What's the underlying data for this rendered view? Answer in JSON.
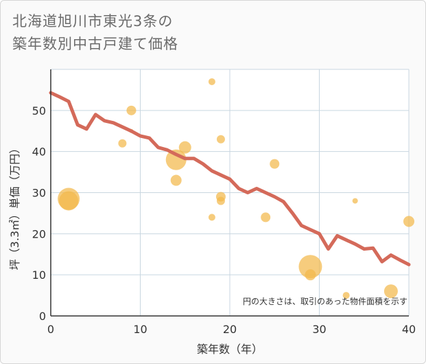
{
  "chart_data": {
    "type": "scatter",
    "title_line1": "北海道旭川市東光3条の",
    "title_line2": "築年数別中古戸建て価格",
    "xlabel": "築年数（年）",
    "ylabel": "坪（3.3㎡）単価（万円）",
    "xlim": [
      0,
      40
    ],
    "ylim": [
      0,
      60
    ],
    "x_ticks": [
      0,
      10,
      20,
      30,
      40
    ],
    "y_ticks": [
      0,
      10,
      20,
      30,
      40,
      50
    ],
    "grid": true,
    "note": "円の大きさは、取引のあった物件面積を示す",
    "colors": {
      "bubble": "#f2b84b",
      "line": "#d46a5a",
      "grid": "#c8d6e0",
      "axis": "#333333"
    },
    "bubbles": [
      {
        "x": 2,
        "y": 28.5,
        "size": 16
      },
      {
        "x": 2,
        "y": 28,
        "size": 14
      },
      {
        "x": 8,
        "y": 42,
        "size": 6
      },
      {
        "x": 9,
        "y": 50,
        "size": 7
      },
      {
        "x": 9,
        "y": 45,
        "size": 3
      },
      {
        "x": 14,
        "y": 38,
        "size": 15
      },
      {
        "x": 14,
        "y": 33,
        "size": 8
      },
      {
        "x": 15,
        "y": 41,
        "size": 9
      },
      {
        "x": 18,
        "y": 57,
        "size": 5
      },
      {
        "x": 18,
        "y": 24,
        "size": 5
      },
      {
        "x": 19,
        "y": 43,
        "size": 6
      },
      {
        "x": 19,
        "y": 29,
        "size": 7
      },
      {
        "x": 19,
        "y": 28,
        "size": 6
      },
      {
        "x": 24,
        "y": 24,
        "size": 7
      },
      {
        "x": 25,
        "y": 37,
        "size": 7
      },
      {
        "x": 29,
        "y": 12,
        "size": 17
      },
      {
        "x": 29,
        "y": 10,
        "size": 8
      },
      {
        "x": 33,
        "y": 5,
        "size": 5
      },
      {
        "x": 34,
        "y": 28,
        "size": 4
      },
      {
        "x": 38,
        "y": 6,
        "size": 10
      },
      {
        "x": 40,
        "y": 23,
        "size": 8
      }
    ],
    "trend": [
      {
        "x": 0,
        "y": 54.3
      },
      {
        "x": 1,
        "y": 53.3
      },
      {
        "x": 2,
        "y": 52.2
      },
      {
        "x": 3,
        "y": 46.5
      },
      {
        "x": 4,
        "y": 45.5
      },
      {
        "x": 5,
        "y": 49
      },
      {
        "x": 6,
        "y": 47.5
      },
      {
        "x": 7,
        "y": 47
      },
      {
        "x": 8,
        "y": 46
      },
      {
        "x": 9,
        "y": 45
      },
      {
        "x": 10,
        "y": 43.8
      },
      {
        "x": 11,
        "y": 43.3
      },
      {
        "x": 12,
        "y": 41
      },
      {
        "x": 13,
        "y": 40.4
      },
      {
        "x": 14,
        "y": 39.3
      },
      {
        "x": 15,
        "y": 38.3
      },
      {
        "x": 16,
        "y": 38.3
      },
      {
        "x": 17,
        "y": 37
      },
      {
        "x": 18,
        "y": 35.3
      },
      {
        "x": 19,
        "y": 34.3
      },
      {
        "x": 20,
        "y": 33.3
      },
      {
        "x": 21,
        "y": 31
      },
      {
        "x": 22,
        "y": 30
      },
      {
        "x": 23,
        "y": 31
      },
      {
        "x": 24,
        "y": 30
      },
      {
        "x": 25,
        "y": 29
      },
      {
        "x": 26,
        "y": 27.8
      },
      {
        "x": 27,
        "y": 25
      },
      {
        "x": 28,
        "y": 22
      },
      {
        "x": 29,
        "y": 21
      },
      {
        "x": 30,
        "y": 20
      },
      {
        "x": 31,
        "y": 16.3
      },
      {
        "x": 32,
        "y": 19.5
      },
      {
        "x": 33,
        "y": 18.5
      },
      {
        "x": 34,
        "y": 17.5
      },
      {
        "x": 35,
        "y": 16.3
      },
      {
        "x": 36,
        "y": 16.5
      },
      {
        "x": 37,
        "y": 13.2
      },
      {
        "x": 38,
        "y": 14.8
      },
      {
        "x": 39,
        "y": 13.6
      },
      {
        "x": 40,
        "y": 12.5
      }
    ]
  }
}
